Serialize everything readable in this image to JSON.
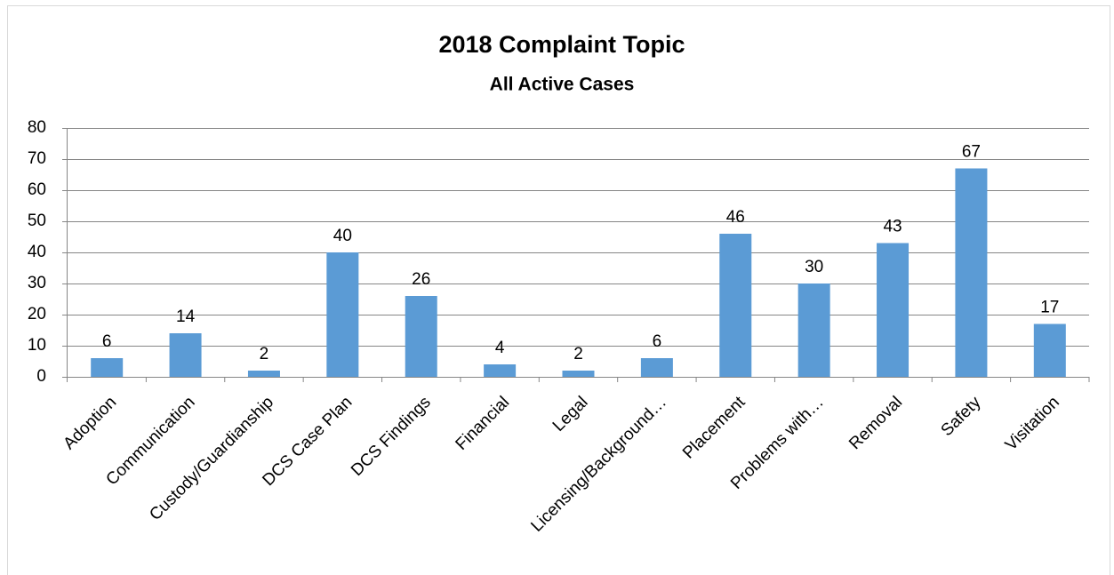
{
  "chart_data": {
    "type": "bar",
    "title": "2018 Complaint Topic",
    "subtitle": "All Active Cases",
    "categories": [
      "Adoption",
      "Communication",
      "Custody/Guardianship",
      "DCS Case Plan",
      "DCS Findings",
      "Financial",
      "Legal",
      "Licensing/Background…",
      "Placement",
      "Problems with…",
      "Removal",
      "Safety",
      "Visitation"
    ],
    "values": [
      6,
      14,
      2,
      40,
      26,
      4,
      2,
      6,
      46,
      30,
      43,
      67,
      17
    ],
    "color": "#5b9bd5",
    "ylim": [
      0,
      80
    ],
    "yticks": [
      0,
      10,
      20,
      30,
      40,
      50,
      60,
      70,
      80
    ],
    "grid": true
  }
}
